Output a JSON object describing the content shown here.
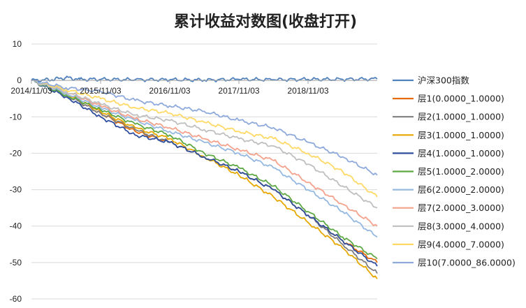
{
  "chart_data": {
    "type": "line",
    "title": "累计收益对数图(收盘打开)",
    "xlabel": "",
    "ylabel": "",
    "x_tick_labels": [
      "2014/11/03",
      "2015/11/03",
      "2016/11/03",
      "2017/11/03",
      "2018/11/03"
    ],
    "xlim": [
      0,
      5
    ],
    "ylim": [
      -60,
      10
    ],
    "y_ticks": [
      10,
      0,
      -10,
      -20,
      -30,
      -40,
      -50,
      -60
    ],
    "grid": "horizontal",
    "legend_position": "right",
    "series": [
      {
        "name": "沪深300指数",
        "color": "#4f81bd",
        "points": [
          [
            0,
            0
          ],
          [
            0.3,
            0.2
          ],
          [
            0.5,
            0.8
          ],
          [
            0.7,
            0.3
          ],
          [
            1.0,
            0.3
          ],
          [
            1.5,
            0.2
          ],
          [
            2.0,
            0.2
          ],
          [
            2.5,
            0.1
          ],
          [
            3.0,
            0.3
          ],
          [
            3.5,
            0.2
          ],
          [
            4.0,
            0.3
          ],
          [
            4.5,
            0.3
          ],
          [
            5.0,
            0.4
          ]
        ]
      },
      {
        "name": "层1(0.0000_1.0000)",
        "color": "#e46c0a",
        "points": [
          [
            0,
            0
          ],
          [
            0.5,
            -4
          ],
          [
            1.0,
            -9
          ],
          [
            1.5,
            -14
          ],
          [
            2.0,
            -17
          ],
          [
            2.5,
            -21
          ],
          [
            3.0,
            -25
          ],
          [
            3.5,
            -30
          ],
          [
            4.0,
            -37
          ],
          [
            4.5,
            -44
          ],
          [
            5.0,
            -50
          ]
        ]
      },
      {
        "name": "层2(1.0000_1.0000)",
        "color": "#7f7f7f",
        "points": [
          [
            0,
            0
          ],
          [
            0.5,
            -4
          ],
          [
            1.0,
            -9
          ],
          [
            1.5,
            -13.5
          ],
          [
            2.0,
            -17
          ],
          [
            2.5,
            -21
          ],
          [
            3.0,
            -25
          ],
          [
            3.5,
            -30
          ],
          [
            4.0,
            -37
          ],
          [
            4.5,
            -45
          ],
          [
            5.0,
            -53
          ]
        ]
      },
      {
        "name": "层3(1.0000_1.0000)",
        "color": "#e6a800",
        "points": [
          [
            0,
            0
          ],
          [
            0.5,
            -3.5
          ],
          [
            1.0,
            -8.5
          ],
          [
            1.5,
            -13
          ],
          [
            2.0,
            -16
          ],
          [
            2.5,
            -21
          ],
          [
            3.0,
            -26
          ],
          [
            3.5,
            -32
          ],
          [
            4.0,
            -39
          ],
          [
            4.5,
            -46
          ],
          [
            5.0,
            -54.5
          ]
        ]
      },
      {
        "name": "层4(1.0000_1.0000)",
        "color": "#2f4f9e",
        "points": [
          [
            0,
            0
          ],
          [
            0.5,
            -4.5
          ],
          [
            1.0,
            -10
          ],
          [
            1.5,
            -15
          ],
          [
            2.0,
            -17
          ],
          [
            2.5,
            -21
          ],
          [
            3.0,
            -25
          ],
          [
            3.5,
            -30
          ],
          [
            4.0,
            -37
          ],
          [
            4.5,
            -44
          ],
          [
            5.0,
            -51
          ]
        ]
      },
      {
        "name": "层5(1.0000_2.0000)",
        "color": "#5ea845",
        "points": [
          [
            0,
            0
          ],
          [
            0.5,
            -4
          ],
          [
            1.0,
            -8
          ],
          [
            1.5,
            -12
          ],
          [
            2.0,
            -15
          ],
          [
            2.5,
            -20
          ],
          [
            3.0,
            -24
          ],
          [
            3.5,
            -29
          ],
          [
            4.0,
            -36
          ],
          [
            4.5,
            -43
          ],
          [
            5.0,
            -49
          ]
        ]
      },
      {
        "name": "层6(2.0000_2.0000)",
        "color": "#95b8e0",
        "points": [
          [
            0,
            0
          ],
          [
            0.5,
            -3.5
          ],
          [
            1.0,
            -7.5
          ],
          [
            1.5,
            -11
          ],
          [
            2.0,
            -14
          ],
          [
            2.5,
            -17
          ],
          [
            3.0,
            -20
          ],
          [
            3.5,
            -24
          ],
          [
            4.0,
            -30
          ],
          [
            4.5,
            -36
          ],
          [
            5.0,
            -43
          ]
        ]
      },
      {
        "name": "层7(2.0000_3.0000)",
        "color": "#f4a28c",
        "points": [
          [
            0,
            0
          ],
          [
            0.5,
            -3
          ],
          [
            1.0,
            -7
          ],
          [
            1.5,
            -10.5
          ],
          [
            2.0,
            -13
          ],
          [
            2.5,
            -16
          ],
          [
            3.0,
            -19
          ],
          [
            3.5,
            -22
          ],
          [
            4.0,
            -28
          ],
          [
            4.5,
            -34
          ],
          [
            5.0,
            -40
          ]
        ]
      },
      {
        "name": "层8(3.0000_4.0000)",
        "color": "#bfbfbf",
        "points": [
          [
            0,
            0
          ],
          [
            0.5,
            -3
          ],
          [
            1.0,
            -6.5
          ],
          [
            1.5,
            -9.5
          ],
          [
            2.0,
            -11
          ],
          [
            2.5,
            -13.5
          ],
          [
            3.0,
            -16
          ],
          [
            3.5,
            -18
          ],
          [
            4.0,
            -23
          ],
          [
            4.5,
            -29
          ],
          [
            5.0,
            -35
          ]
        ]
      },
      {
        "name": "层9(4.0000_7.0000)",
        "color": "#ffd966",
        "points": [
          [
            0,
            0
          ],
          [
            0.5,
            -2.5
          ],
          [
            1.0,
            -5
          ],
          [
            1.5,
            -7.5
          ],
          [
            2.0,
            -9
          ],
          [
            2.5,
            -11.5
          ],
          [
            3.0,
            -14
          ],
          [
            3.5,
            -16
          ],
          [
            4.0,
            -20
          ],
          [
            4.5,
            -25
          ],
          [
            5.0,
            -32
          ]
        ]
      },
      {
        "name": "层10(7.0000_86.0000)",
        "color": "#8ea9db",
        "points": [
          [
            0,
            0
          ],
          [
            0.5,
            -2
          ],
          [
            1.0,
            -3
          ],
          [
            1.5,
            -5.5
          ],
          [
            2.0,
            -7
          ],
          [
            2.5,
            -8.5
          ],
          [
            3.0,
            -11
          ],
          [
            3.5,
            -13
          ],
          [
            4.0,
            -17
          ],
          [
            4.5,
            -21
          ],
          [
            5.0,
            -26
          ]
        ]
      }
    ]
  }
}
